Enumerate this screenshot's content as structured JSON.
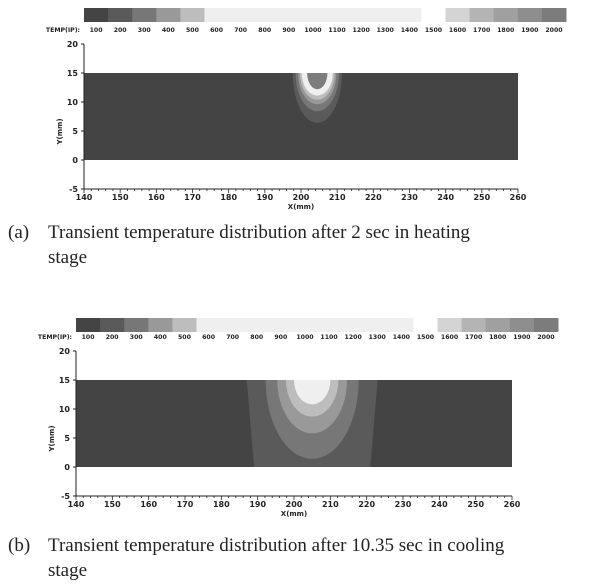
{
  "legend": {
    "label": "TEMP(IP):",
    "values": [
      "100",
      "200",
      "300",
      "400",
      "500",
      "600",
      "700",
      "800",
      "900",
      "1000",
      "1100",
      "1200",
      "1300",
      "1400",
      "1500",
      "1600",
      "1700",
      "1800",
      "1900",
      "2000"
    ],
    "colors": [
      "#444444",
      "#5a5a5a",
      "#777777",
      "#999999",
      "#bdbdbd",
      "#efefef",
      "#efefef",
      "#efefef",
      "#efefef",
      "#efefef",
      "#efefef",
      "#efefef",
      "#efefef",
      "#efefef",
      "#ffffff",
      "#d4d4d4",
      "#b4b4b4",
      "#a0a0a0",
      "#8e8e8e",
      "#7c7c7c"
    ]
  },
  "caption_a": {
    "tag": "(a)",
    "text": "Transient temperature distribution after 2 sec in heating",
    "line2": "stage"
  },
  "caption_b": {
    "tag": "(b)",
    "text": "Transient temperature distribution after 10.35 sec in cooling",
    "line2": "stage"
  },
  "chart_data": [
    {
      "type": "heatmap",
      "xlabel": "X(mm)",
      "ylabel": "Y(mm)",
      "xlim": [
        140,
        260
      ],
      "ylim": [
        -5,
        20
      ],
      "xticks": [
        140,
        150,
        160,
        170,
        180,
        190,
        200,
        210,
        220,
        230,
        240,
        250,
        260
      ],
      "yticks": [
        -5,
        0,
        5,
        10,
        15,
        20
      ],
      "plate": {
        "x": [
          140,
          260
        ],
        "y": [
          0,
          15
        ]
      },
      "background_color": "#444444",
      "contours": [
        {
          "color": "#5a5a5a",
          "cx": 204.5,
          "xr": 6.8,
          "depth": 8.6
        },
        {
          "color": "#777777",
          "cx": 204.5,
          "xr": 6.0,
          "depth": 6.6
        },
        {
          "color": "#999999",
          "cx": 204.5,
          "xr": 5.3,
          "depth": 5.4
        },
        {
          "color": "#bdbdbd",
          "cx": 204.5,
          "xr": 4.8,
          "depth": 4.6
        },
        {
          "color": "#efefef",
          "cx": 204.5,
          "xr": 4.3,
          "depth": 3.9
        },
        {
          "color": "#7c7c7c",
          "cx": 204.5,
          "xr": 2.8,
          "depth": 2.8
        }
      ]
    },
    {
      "type": "heatmap",
      "xlabel": "X(mm)",
      "ylabel": "Y(mm)",
      "xlim": [
        140,
        260
      ],
      "ylim": [
        -5,
        20
      ],
      "xticks": [
        140,
        150,
        160,
        170,
        180,
        190,
        200,
        210,
        220,
        230,
        240,
        250,
        260
      ],
      "yticks": [
        -5,
        0,
        5,
        10,
        15,
        20
      ],
      "plate": {
        "x": [
          140,
          260
        ],
        "y": [
          0,
          15
        ]
      },
      "background_color": "#444444",
      "contours": [
        {
          "color": "#5a5a5a",
          "shape": "band",
          "top": [
            187,
            223
          ],
          "bottom": [
            189,
            221
          ]
        },
        {
          "color": "#777777",
          "cx": 205,
          "xr": 12.8,
          "depth": 13.6
        },
        {
          "color": "#999999",
          "cx": 205,
          "xr": 9.6,
          "depth": 9.2
        },
        {
          "color": "#bdbdbd",
          "cx": 205,
          "xr": 7.2,
          "depth": 6.3
        },
        {
          "color": "#efefef",
          "cx": 205,
          "xr": 5.0,
          "depth": 4.2
        }
      ]
    }
  ]
}
